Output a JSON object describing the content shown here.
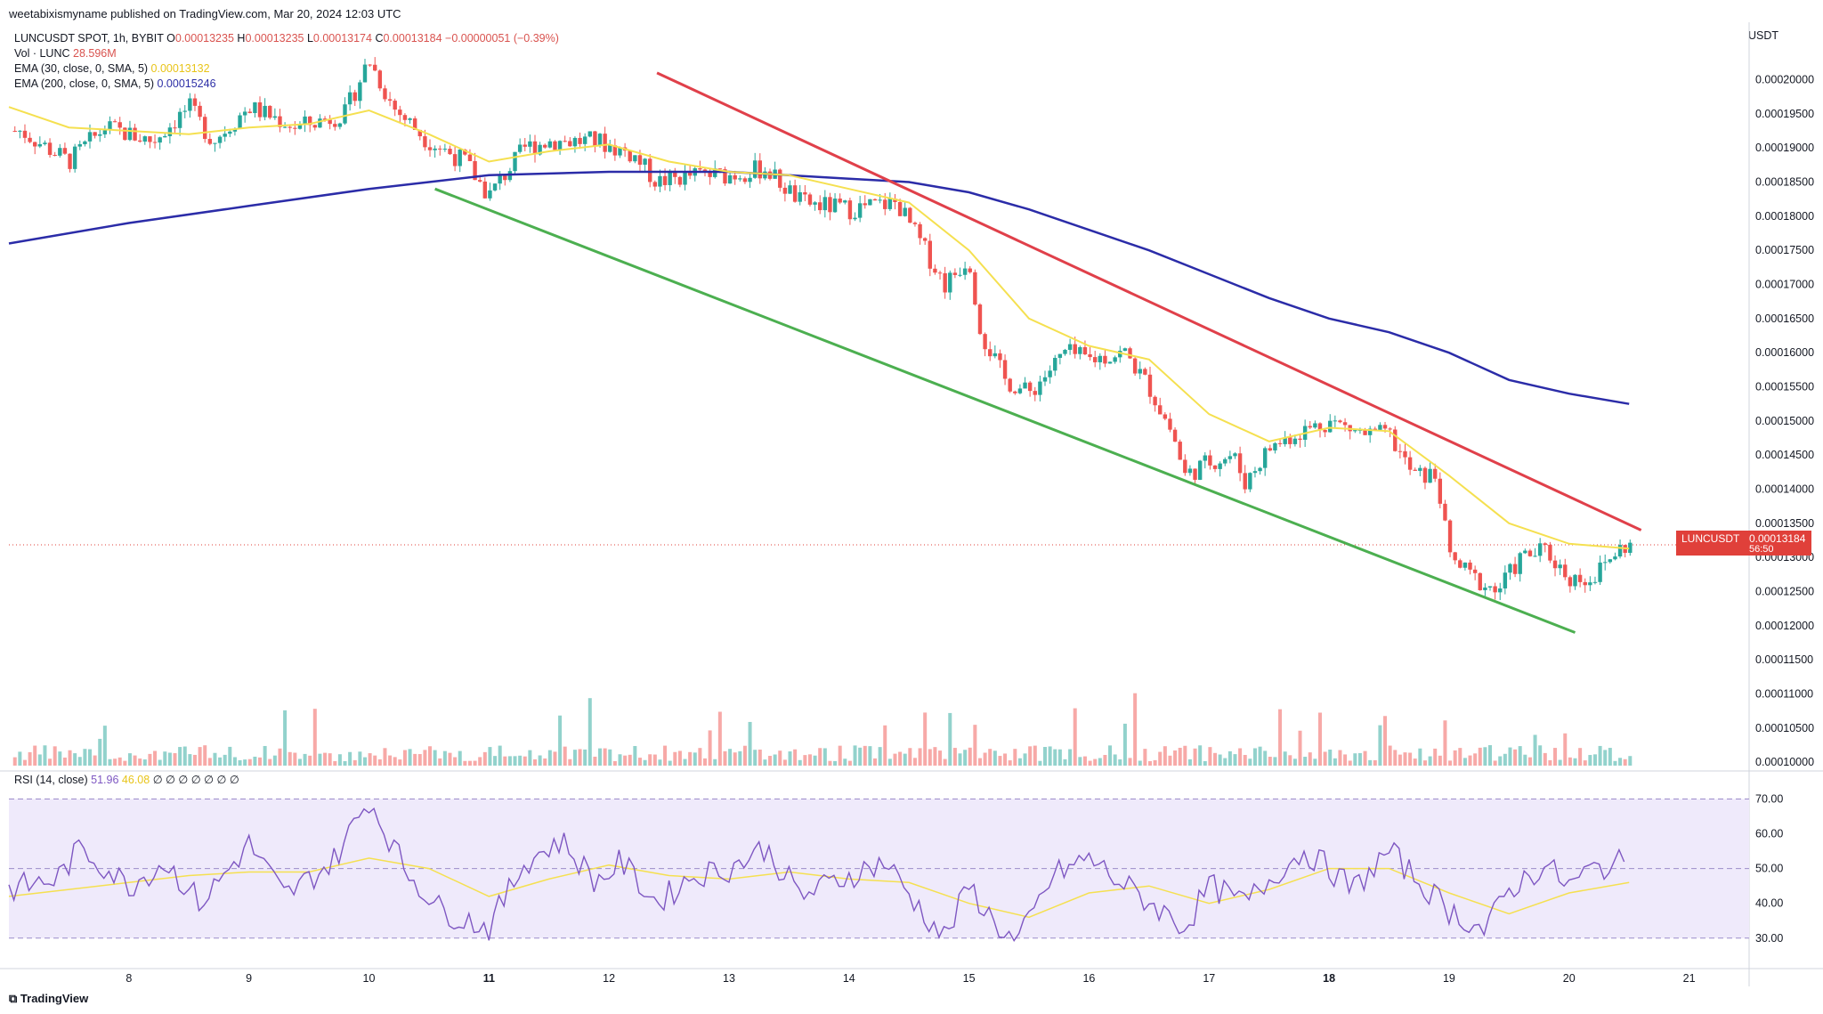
{
  "header": {
    "publisher": "weetabixismyname published on TradingView.com, Mar 20, 2024 12:03 UTC"
  },
  "legend": {
    "symbol": "LUNCUSDT SPOT, 1h, BYBIT",
    "o_label": "O",
    "o_val": "0.00013235",
    "h_label": "H",
    "h_val": "0.00013235",
    "l_label": "L",
    "l_val": "0.00013174",
    "c_label": "C",
    "c_val": "0.00013184",
    "change": "−0.00000051 (−0.39%)",
    "vol_label": "Vol · LUNC",
    "vol_val": "28.596M",
    "ema30_label": "EMA (30, close, 0, SMA, 5)",
    "ema30_val": "0.00013132",
    "ema200_label": "EMA (200, close, 0, SMA, 5)",
    "ema200_val": "0.00015246"
  },
  "rsi_legend": {
    "label": "RSI (14, close)",
    "val": "51.96",
    "ma_val": "46.08",
    "extras": "∅ ∅ ∅ ∅ ∅ ∅ ∅"
  },
  "currency": "USDT",
  "price_tag": {
    "symbol": "LUNCUSDT",
    "price": "0.00013184",
    "countdown": "56:50"
  },
  "footer": {
    "logo": "TradingView"
  },
  "colors": {
    "up": "#26a69a",
    "down": "#ef5350",
    "ema30": "#f5e050",
    "ema200": "#2b2ca8",
    "resistance": "#e0404a",
    "support": "#4caf50",
    "rsi": "#7e57c2",
    "rsi_band": "#efeafb"
  },
  "chart_data": [
    {
      "type": "candlestick",
      "x_ticks": [
        "8",
        "9",
        "10",
        "11",
        "12",
        "13",
        "14",
        "15",
        "16",
        "17",
        "18",
        "19",
        "20",
        "21"
      ],
      "y_ticks": [
        "0.00010000",
        "0.00010500",
        "0.00011000",
        "0.00011500",
        "0.00012000",
        "0.00012500",
        "0.00013000",
        "0.00013500",
        "0.00014000",
        "0.00014500",
        "0.00015000",
        "0.00015500",
        "0.00016000",
        "0.00016500",
        "0.00017000",
        "0.00017500",
        "0.00018000",
        "0.00018500",
        "0.00019000",
        "0.00019500",
        "0.00020000"
      ],
      "ylim": [
        9.95e-05,
        0.0002045
      ],
      "price_path": [
        [
          7.1,
          0.0001925
        ],
        [
          7.5,
          0.000188
        ],
        [
          7.8,
          0.000193
        ],
        [
          8.2,
          0.000191
        ],
        [
          8.5,
          0.000196
        ],
        [
          8.7,
          0.000191
        ],
        [
          9.0,
          0.000196
        ],
        [
          9.4,
          0.000193
        ],
        [
          9.8,
          0.000195
        ],
        [
          10.0,
          0.000203
        ],
        [
          10.2,
          0.000196
        ],
        [
          10.5,
          0.000191
        ],
        [
          10.8,
          0.000188
        ],
        [
          11.0,
          0.000183
        ],
        [
          11.3,
          0.00019
        ],
        [
          11.5,
          0.000191
        ],
        [
          11.9,
          0.000191
        ],
        [
          12.2,
          0.000189
        ],
        [
          12.4,
          0.000185
        ],
        [
          12.7,
          0.000186
        ],
        [
          13.0,
          0.000186
        ],
        [
          13.3,
          0.000187
        ],
        [
          13.6,
          0.000182
        ],
        [
          14.0,
          0.000181
        ],
        [
          14.4,
          0.000182
        ],
        [
          14.6,
          0.000176
        ],
        [
          14.8,
          0.00017
        ],
        [
          15.0,
          0.000174
        ],
        [
          15.1,
          0.000163
        ],
        [
          15.3,
          0.000156
        ],
        [
          15.5,
          0.000154
        ],
        [
          15.7,
          0.000158
        ],
        [
          15.8,
          0.00016
        ],
        [
          16.0,
          0.000159
        ],
        [
          16.3,
          0.00016
        ],
        [
          16.5,
          0.000155
        ],
        [
          16.7,
          0.000148
        ],
        [
          16.8,
          0.000142
        ],
        [
          17.0,
          0.000144
        ],
        [
          17.2,
          0.000145
        ],
        [
          17.3,
          0.000141
        ],
        [
          17.5,
          0.000146
        ],
        [
          17.7,
          0.000148
        ],
        [
          18.0,
          0.00015
        ],
        [
          18.3,
          0.000148
        ],
        [
          18.5,
          0.000148
        ],
        [
          18.6,
          0.000145
        ],
        [
          18.7,
          0.000142
        ],
        [
          18.9,
          0.000142
        ],
        [
          19.0,
          0.00013
        ],
        [
          19.2,
          0.000127
        ],
        [
          19.4,
          0.000125
        ],
        [
          19.6,
          0.00013
        ],
        [
          19.8,
          0.000131
        ],
        [
          20.0,
          0.000127
        ],
        [
          20.2,
          0.000127
        ],
        [
          20.4,
          0.000131
        ],
        [
          20.5,
          0.0001318
        ]
      ],
      "ema30_path": [
        [
          7.0,
          0.000196
        ],
        [
          7.5,
          0.000193
        ],
        [
          8.0,
          0.0001925
        ],
        [
          8.5,
          0.000192
        ],
        [
          9.0,
          0.000193
        ],
        [
          9.5,
          0.0001935
        ],
        [
          10.0,
          0.0001955
        ],
        [
          10.5,
          0.000192
        ],
        [
          11.0,
          0.000188
        ],
        [
          11.5,
          0.0001895
        ],
        [
          12.0,
          0.0001905
        ],
        [
          12.5,
          0.000188
        ],
        [
          13.0,
          0.0001865
        ],
        [
          13.5,
          0.000186
        ],
        [
          14.0,
          0.000184
        ],
        [
          14.5,
          0.000182
        ],
        [
          15.0,
          0.000175
        ],
        [
          15.5,
          0.000165
        ],
        [
          16.0,
          0.000161
        ],
        [
          16.5,
          0.000159
        ],
        [
          17.0,
          0.000151
        ],
        [
          17.5,
          0.000147
        ],
        [
          18.0,
          0.000149
        ],
        [
          18.5,
          0.0001485
        ],
        [
          19.0,
          0.000142
        ],
        [
          19.5,
          0.000135
        ],
        [
          20.0,
          0.000132
        ],
        [
          20.5,
          0.0001313
        ]
      ],
      "ema200_path": [
        [
          7.0,
          0.000176
        ],
        [
          8.0,
          0.000179
        ],
        [
          9.0,
          0.0001815
        ],
        [
          10.0,
          0.000184
        ],
        [
          10.5,
          0.000185
        ],
        [
          11.0,
          0.000186
        ],
        [
          12.0,
          0.0001865
        ],
        [
          13.0,
          0.0001865
        ],
        [
          14.0,
          0.0001855
        ],
        [
          14.5,
          0.000185
        ],
        [
          15.0,
          0.0001835
        ],
        [
          15.5,
          0.000181
        ],
        [
          16.0,
          0.000178
        ],
        [
          16.5,
          0.000175
        ],
        [
          17.0,
          0.0001715
        ],
        [
          17.5,
          0.000168
        ],
        [
          18.0,
          0.000165
        ],
        [
          18.5,
          0.000163
        ],
        [
          19.0,
          0.00016
        ],
        [
          19.5,
          0.000156
        ],
        [
          20.0,
          0.000154
        ],
        [
          20.5,
          0.0001525
        ]
      ],
      "trendlines": [
        {
          "name": "resistance",
          "from": [
            12.4,
            0.000201
          ],
          "to": [
            20.6,
            0.000134
          ]
        },
        {
          "name": "support",
          "from": [
            10.55,
            0.000184
          ],
          "to": [
            20.05,
            0.000119
          ]
        }
      ]
    },
    {
      "type": "line",
      "name": "RSI (14, close)",
      "y_ticks": [
        "30.00",
        "40.00",
        "50.00",
        "60.00",
        "70.00"
      ],
      "ylim": [
        22,
        75
      ],
      "band": [
        30,
        70
      ],
      "rsi_path": [
        [
          7.0,
          44
        ],
        [
          7.4,
          47
        ],
        [
          7.6,
          56
        ],
        [
          8.0,
          45
        ],
        [
          8.3,
          52
        ],
        [
          8.6,
          40
        ],
        [
          9.0,
          57
        ],
        [
          9.3,
          42
        ],
        [
          9.7,
          52
        ],
        [
          10.0,
          70
        ],
        [
          10.3,
          50
        ],
        [
          10.6,
          38
        ],
        [
          11.0,
          33
        ],
        [
          11.3,
          52
        ],
        [
          11.6,
          58
        ],
        [
          11.9,
          46
        ],
        [
          12.1,
          52
        ],
        [
          12.4,
          40
        ],
        [
          12.7,
          48
        ],
        [
          13.0,
          50
        ],
        [
          13.3,
          56
        ],
        [
          13.6,
          42
        ],
        [
          14.0,
          48
        ],
        [
          14.3,
          52
        ],
        [
          14.6,
          38
        ],
        [
          14.8,
          30
        ],
        [
          15.0,
          45
        ],
        [
          15.2,
          35
        ],
        [
          15.4,
          28
        ],
        [
          15.7,
          48
        ],
        [
          16.0,
          53
        ],
        [
          16.3,
          45
        ],
        [
          16.6,
          38
        ],
        [
          16.8,
          33
        ],
        [
          17.0,
          45
        ],
        [
          17.3,
          40
        ],
        [
          17.6,
          50
        ],
        [
          17.8,
          55
        ],
        [
          18.0,
          50
        ],
        [
          18.2,
          44
        ],
        [
          18.5,
          55
        ],
        [
          18.7,
          48
        ],
        [
          19.0,
          38
        ],
        [
          19.3,
          32
        ],
        [
          19.5,
          44
        ],
        [
          19.8,
          51
        ],
        [
          20.0,
          45
        ],
        [
          20.2,
          50
        ],
        [
          20.5,
          52
        ]
      ],
      "rsi_ma_path": [
        [
          7.0,
          42
        ],
        [
          7.5,
          44
        ],
        [
          8.0,
          46
        ],
        [
          8.5,
          48
        ],
        [
          9.0,
          49
        ],
        [
          9.5,
          49
        ],
        [
          10.0,
          53
        ],
        [
          10.5,
          50
        ],
        [
          11.0,
          42
        ],
        [
          11.5,
          47
        ],
        [
          12.0,
          51
        ],
        [
          12.5,
          48
        ],
        [
          13.0,
          47
        ],
        [
          13.5,
          49
        ],
        [
          14.0,
          47
        ],
        [
          14.5,
          46
        ],
        [
          15.0,
          40
        ],
        [
          15.5,
          36
        ],
        [
          16.0,
          43
        ],
        [
          16.5,
          45
        ],
        [
          17.0,
          40
        ],
        [
          17.5,
          44
        ],
        [
          18.0,
          50
        ],
        [
          18.5,
          50
        ],
        [
          19.0,
          43
        ],
        [
          19.5,
          37
        ],
        [
          20.0,
          43
        ],
        [
          20.5,
          46
        ]
      ]
    }
  ]
}
